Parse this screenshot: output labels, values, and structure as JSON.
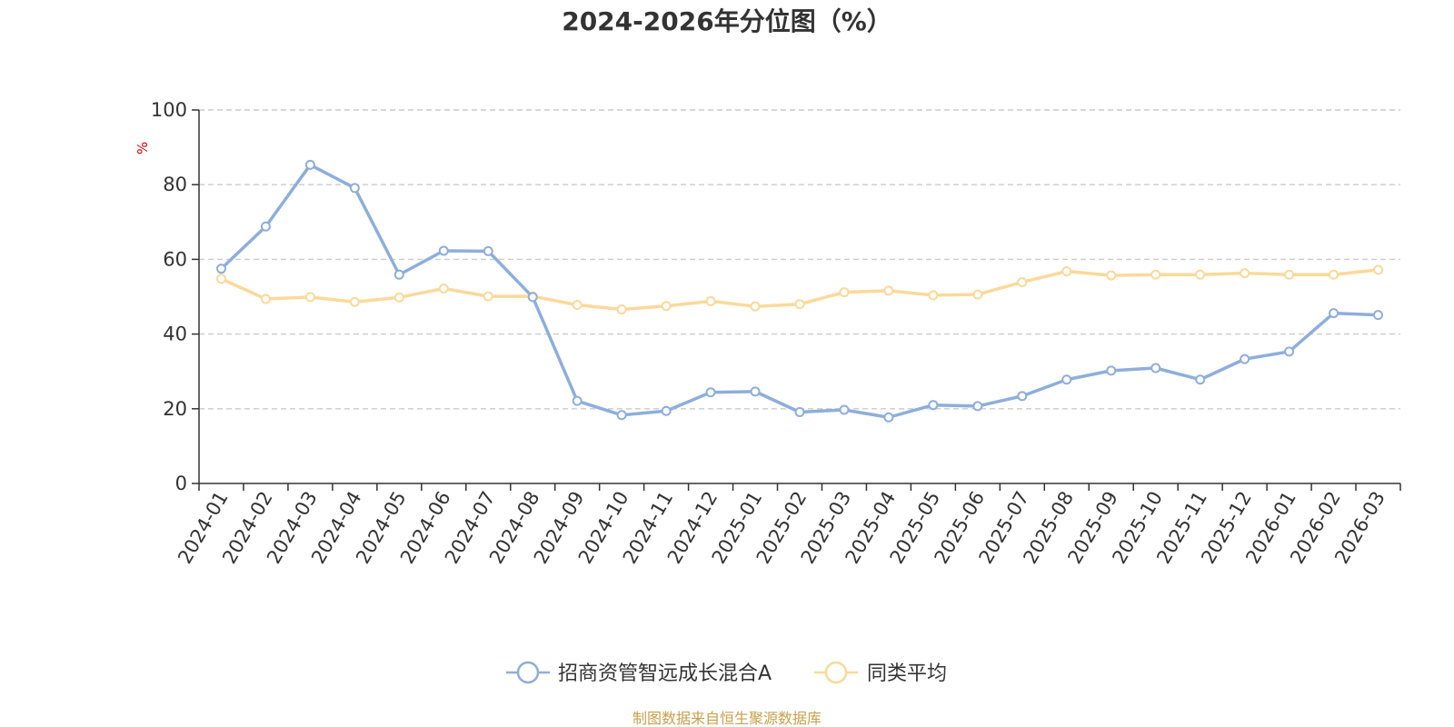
{
  "chart_data": {
    "type": "line",
    "title": "2024-2026年分位图（%）",
    "ylabel": "%",
    "ylim": [
      0,
      100
    ],
    "yticks": [
      0,
      20,
      40,
      60,
      80,
      100
    ],
    "grid": true,
    "legend_position": "bottom-center",
    "categories": [
      "2024-01",
      "2024-02",
      "2024-03",
      "2024-04",
      "2024-05",
      "2024-06",
      "2024-07",
      "2024-08",
      "2024-09",
      "2024-10",
      "2024-11",
      "2024-12",
      "2025-01",
      "2025-02",
      "2025-03",
      "2025-04",
      "2025-05",
      "2025-06",
      "2025-07",
      "2025-08",
      "2025-09",
      "2025-10",
      "2025-11",
      "2025-12",
      "2026-01",
      "2026-02",
      "2026-03"
    ],
    "series": [
      {
        "name": "招商资管智远成长混合A",
        "color": "#8eaedb",
        "values": [
          57.5,
          68.8,
          85.3,
          79.1,
          55.9,
          62.3,
          62.2,
          49.9,
          22.1,
          18.3,
          19.4,
          24.4,
          24.6,
          19.1,
          19.7,
          17.7,
          21.0,
          20.7,
          23.4,
          27.8,
          30.2,
          30.9,
          27.8,
          33.3,
          35.3,
          45.6,
          45.1
        ]
      },
      {
        "name": "同类平均",
        "color": "#fbd99a",
        "values": [
          54.8,
          49.4,
          49.9,
          48.6,
          49.8,
          52.2,
          50.1,
          50.1,
          47.8,
          46.6,
          47.5,
          48.8,
          47.4,
          48.0,
          51.2,
          51.6,
          50.4,
          50.6,
          53.9,
          56.8,
          55.7,
          55.9,
          55.9,
          56.3,
          55.9,
          55.9,
          57.2
        ]
      }
    ]
  },
  "source": "制图数据来自恒生聚源数据库"
}
